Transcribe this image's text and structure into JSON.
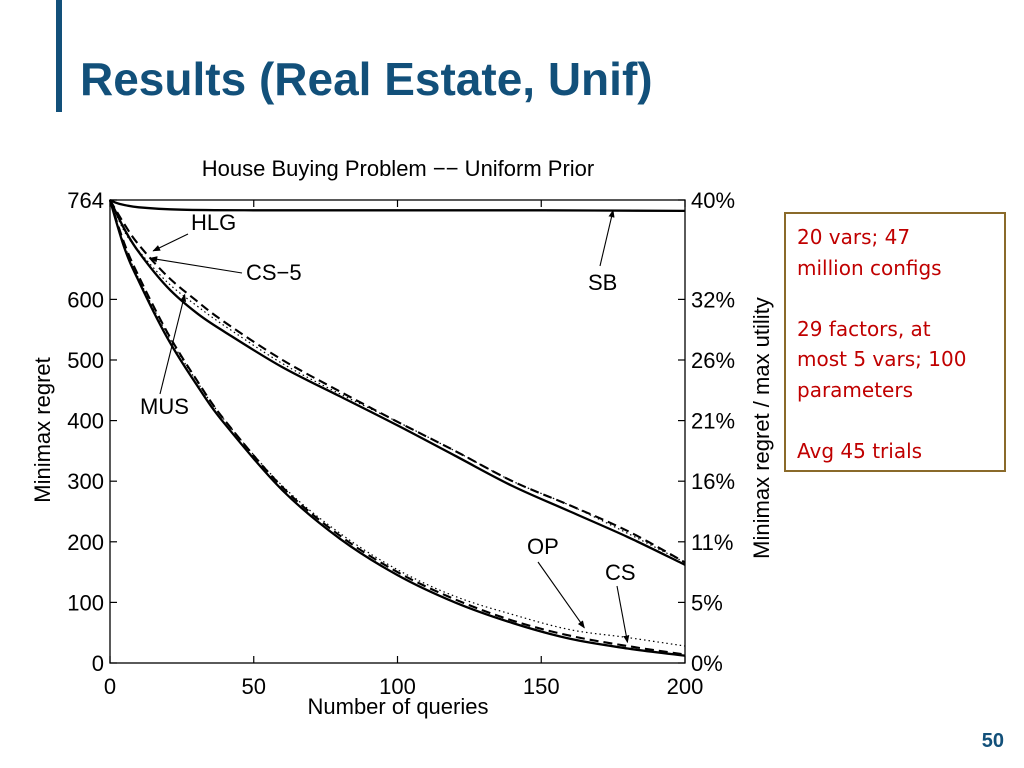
{
  "slide": {
    "title": "Results (Real Estate, Unif)",
    "page_number": "50",
    "title_color": "#12507a",
    "info_lines": [
      "20 vars;  47",
      "million configs",
      "",
      "29 factors, at",
      "most 5 vars; 100",
      "parameters",
      "",
      "Avg 45 trials"
    ],
    "info_text_color": "#c00000",
    "info_border_color": "#8a6a2a"
  },
  "chart_data": {
    "type": "line",
    "title": "House Buying Problem −− Uniform Prior",
    "xlabel": "Number of queries",
    "ylabel": "Minimax regret",
    "ylabel_right": "Minimax regret / max utility",
    "xlim": [
      0,
      200
    ],
    "ylim": [
      0,
      764
    ],
    "x_ticks": [
      0,
      50,
      100,
      150,
      200
    ],
    "x_tick_labels": [
      "0",
      "50",
      "100",
      "150",
      "200"
    ],
    "y_ticks": [
      0,
      100,
      200,
      300,
      400,
      500,
      600,
      764
    ],
    "y_tick_labels": [
      "0",
      "100",
      "200",
      "300",
      "400",
      "500",
      "600",
      "764"
    ],
    "y_right_ticks": [
      0,
      100,
      200,
      300,
      400,
      500,
      600,
      764
    ],
    "y_right_tick_labels": [
      "0%",
      "5%",
      "11%",
      "16%",
      "21%",
      "26%",
      "32%",
      "40%"
    ],
    "grid": false,
    "series": [
      {
        "name": "SB",
        "style": "solid",
        "x": [
          0,
          3,
          10,
          25,
          50,
          100,
          150,
          200
        ],
        "y": [
          764,
          758,
          752,
          748,
          747,
          747,
          747,
          746
        ]
      },
      {
        "name": "HLG",
        "style": "dashed",
        "x": [
          0,
          5,
          10,
          20,
          30,
          40,
          60,
          80,
          100,
          120,
          140,
          160,
          180,
          200
        ],
        "y": [
          764,
          724,
          690,
          638,
          598,
          562,
          500,
          448,
          398,
          350,
          300,
          260,
          218,
          166
        ]
      },
      {
        "name": "CS-5",
        "style": "dotted",
        "x": [
          0,
          5,
          10,
          20,
          30,
          40,
          60,
          80,
          100,
          120,
          140,
          160,
          180,
          200
        ],
        "y": [
          764,
          712,
          680,
          628,
          590,
          556,
          494,
          444,
          398,
          350,
          300,
          260,
          214,
          166
        ]
      },
      {
        "name": "MUS",
        "style": "solid",
        "x": [
          0,
          5,
          10,
          20,
          30,
          40,
          60,
          80,
          100,
          120,
          140,
          160,
          180,
          200
        ],
        "y": [
          764,
          716,
          678,
          620,
          578,
          546,
          488,
          440,
          392,
          342,
          292,
          250,
          208,
          162
        ]
      },
      {
        "name": "OP",
        "style": "dashed",
        "x": [
          0,
          5,
          10,
          20,
          30,
          40,
          60,
          80,
          100,
          120,
          140,
          160,
          180,
          200
        ],
        "y": [
          764,
          692,
          638,
          545,
          468,
          400,
          290,
          210,
          150,
          105,
          70,
          45,
          28,
          14
        ]
      },
      {
        "name": "CS",
        "style": "dotted",
        "x": [
          0,
          5,
          10,
          20,
          30,
          40,
          60,
          80,
          100,
          120,
          140,
          160,
          180,
          200
        ],
        "y": [
          764,
          690,
          634,
          542,
          466,
          400,
          292,
          214,
          154,
          110,
          80,
          55,
          42,
          28
        ]
      },
      {
        "name": "",
        "style": "solid",
        "x": [
          0,
          5,
          10,
          20,
          30,
          40,
          60,
          80,
          100,
          120,
          140,
          160,
          180,
          200
        ],
        "y": [
          764,
          685,
          630,
          536,
          460,
          394,
          285,
          205,
          145,
          100,
          66,
          40,
          24,
          12
        ]
      }
    ],
    "annotations": [
      {
        "text": "HLG",
        "series": "HLG"
      },
      {
        "text": "CS−5",
        "series": "CS-5"
      },
      {
        "text": "SB",
        "series": "SB"
      },
      {
        "text": "MUS",
        "series": "MUS"
      },
      {
        "text": "OP",
        "series": "OP"
      },
      {
        "text": "CS",
        "series": "CS"
      }
    ]
  }
}
